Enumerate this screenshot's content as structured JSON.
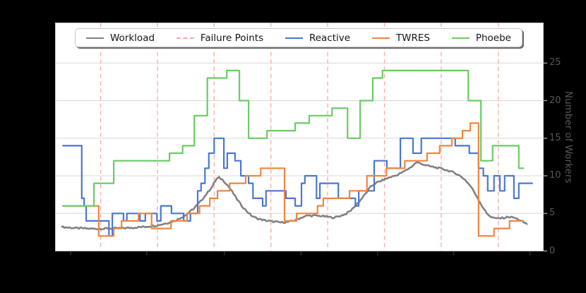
{
  "figure": {
    "y_axis_label": "Number of Workers",
    "y_ticks": [
      0,
      5,
      10,
      15,
      20,
      25
    ],
    "x_ticks_t": [
      3.2,
      18.9,
      34.9,
      50.7,
      66.5,
      82.2,
      97.9
    ],
    "colors": {
      "plot_background": "#ffffff",
      "outer_background": "#000000",
      "grid": "#d7d7d7",
      "spine": "#c9c9c9",
      "tick_text": "#575757",
      "x_tick_mark": "#3a3a3a",
      "y_tick_mark": "#b9b9b9"
    }
  },
  "legend": {
    "items": [
      {
        "label": "Workload",
        "color": "#828282",
        "style": "solid"
      },
      {
        "label": "Failure Points",
        "color": "#fcaaa6",
        "style": "dashed"
      },
      {
        "label": "Reactive",
        "color": "#4a77d4",
        "style": "solid"
      },
      {
        "label": "TWRES",
        "color": "#f0853f",
        "style": "solid"
      },
      {
        "label": "Phoebe",
        "color": "#69cc62",
        "style": "solid"
      }
    ]
  },
  "chart_data": {
    "type": "line",
    "title": "",
    "xlabel": "",
    "ylabel": "Number of Workers",
    "x_axis_note": "time axis, tick labels not visible in image; x normalized 0-100",
    "xlim": [
      0,
      100
    ],
    "ylim": [
      0,
      30.4
    ],
    "grid": "horizontal-only",
    "legend_position": "top-center-horizontal",
    "failure_points_t": [
      9.4,
      21.1,
      32.8,
      44.5,
      56.2,
      67.9,
      79.6,
      91.4
    ],
    "series": [
      {
        "name": "Workload",
        "color": "#828282",
        "line_style": "noisy-line",
        "end_t": 97.3,
        "points": [
          [
            1.3,
            3.2
          ],
          [
            4,
            3.05
          ],
          [
            8,
            2.95
          ],
          [
            12,
            3.0
          ],
          [
            16,
            3.1
          ],
          [
            19,
            3.25
          ],
          [
            21,
            3.4
          ],
          [
            23,
            3.7
          ],
          [
            25,
            4.1
          ],
          [
            27,
            4.8
          ],
          [
            28.5,
            5.6
          ],
          [
            30,
            6.6
          ],
          [
            31.5,
            7.8
          ],
          [
            32.5,
            8.7
          ],
          [
            33.3,
            9.6
          ],
          [
            33.8,
            9.75
          ],
          [
            34.5,
            9.5
          ],
          [
            35.5,
            8.8
          ],
          [
            36.5,
            7.9
          ],
          [
            37.5,
            6.9
          ],
          [
            38.5,
            6.0
          ],
          [
            39.5,
            5.3
          ],
          [
            40.5,
            4.7
          ],
          [
            41.5,
            4.35
          ],
          [
            43,
            4.1
          ],
          [
            45,
            3.9
          ],
          [
            46.5,
            3.8
          ],
          [
            48,
            3.85
          ],
          [
            49.5,
            4.1
          ],
          [
            51,
            4.5
          ],
          [
            52,
            4.7
          ],
          [
            53.5,
            4.7
          ],
          [
            55,
            4.65
          ],
          [
            56.5,
            4.5
          ],
          [
            57.5,
            4.45
          ],
          [
            58.5,
            4.6
          ],
          [
            60,
            4.95
          ],
          [
            61,
            5.4
          ],
          [
            62,
            6.1
          ],
          [
            63,
            6.8
          ],
          [
            64,
            7.6
          ],
          [
            65,
            8.5
          ],
          [
            66,
            9.0
          ],
          [
            67.5,
            9.4
          ],
          [
            69,
            9.8
          ],
          [
            70.5,
            10.1
          ],
          [
            72,
            10.6
          ],
          [
            73.5,
            11.2
          ],
          [
            74.5,
            11.8
          ],
          [
            75.5,
            11.6
          ],
          [
            77,
            11.3
          ],
          [
            78.5,
            11.1
          ],
          [
            80,
            10.9
          ],
          [
            81.5,
            10.6
          ],
          [
            83,
            10.2
          ],
          [
            84.5,
            9.5
          ],
          [
            85.8,
            8.5
          ],
          [
            87,
            7.2
          ],
          [
            88,
            6.0
          ],
          [
            89,
            5.0
          ],
          [
            90,
            4.5
          ],
          [
            91,
            4.3
          ],
          [
            92.5,
            4.4
          ],
          [
            93.5,
            4.55
          ],
          [
            94.5,
            4.45
          ],
          [
            95.5,
            4.2
          ],
          [
            96.3,
            3.9
          ],
          [
            97.3,
            3.6
          ]
        ]
      },
      {
        "name": "Reactive",
        "color": "#4a77d4",
        "line_style": "step",
        "end_t": 98.5,
        "points": [
          [
            1.5,
            14
          ],
          [
            5.5,
            7
          ],
          [
            6.0,
            6
          ],
          [
            6.4,
            4
          ],
          [
            11.1,
            2
          ],
          [
            11.8,
            5
          ],
          [
            14.1,
            4
          ],
          [
            14.8,
            5
          ],
          [
            17.5,
            4
          ],
          [
            18.6,
            5
          ],
          [
            21.0,
            4
          ],
          [
            21.8,
            6
          ],
          [
            24.0,
            5
          ],
          [
            26.5,
            4
          ],
          [
            27.9,
            5
          ],
          [
            29.4,
            8
          ],
          [
            30.1,
            9
          ],
          [
            30.9,
            11
          ],
          [
            31.7,
            13
          ],
          [
            32.8,
            15
          ],
          [
            34.8,
            11
          ],
          [
            35.5,
            13
          ],
          [
            37.1,
            12
          ],
          [
            38.3,
            10
          ],
          [
            39.9,
            9
          ],
          [
            40.8,
            7
          ],
          [
            42.8,
            6
          ],
          [
            43.5,
            8
          ],
          [
            47.6,
            7
          ],
          [
            49.5,
            6
          ],
          [
            50.8,
            9
          ],
          [
            51.5,
            10
          ],
          [
            53.9,
            7
          ],
          [
            54.6,
            9
          ],
          [
            58.4,
            7
          ],
          [
            61.9,
            6
          ],
          [
            62.6,
            8
          ],
          [
            65.8,
            12
          ],
          [
            68.4,
            11
          ],
          [
            71.2,
            15
          ],
          [
            73.8,
            13
          ],
          [
            75.5,
            15
          ],
          [
            82.5,
            14
          ],
          [
            85.4,
            13
          ],
          [
            87.3,
            11
          ],
          [
            88.3,
            10
          ],
          [
            89.2,
            8
          ],
          [
            90.5,
            10
          ],
          [
            91.7,
            8
          ],
          [
            92.7,
            10
          ],
          [
            94.6,
            7
          ],
          [
            95.6,
            9
          ]
        ]
      },
      {
        "name": "TWRES",
        "color": "#f0853f",
        "line_style": "step",
        "end_t": 96.7,
        "points": [
          [
            1.5,
            6
          ],
          [
            9.0,
            2
          ],
          [
            12.1,
            3
          ],
          [
            13.7,
            4
          ],
          [
            17.2,
            5
          ],
          [
            19.9,
            3
          ],
          [
            23.9,
            4
          ],
          [
            27.2,
            5
          ],
          [
            29.8,
            6
          ],
          [
            31.9,
            7
          ],
          [
            33.5,
            8
          ],
          [
            36.0,
            9
          ],
          [
            39.3,
            10
          ],
          [
            42.4,
            11
          ],
          [
            47.3,
            4
          ],
          [
            49.8,
            5
          ],
          [
            54.1,
            6
          ],
          [
            55.3,
            7
          ],
          [
            60.7,
            8
          ],
          [
            64.3,
            10
          ],
          [
            68.3,
            11
          ],
          [
            72.1,
            12
          ],
          [
            76.7,
            13
          ],
          [
            79.3,
            14
          ],
          [
            81.8,
            15
          ],
          [
            84.0,
            16
          ],
          [
            85.6,
            17
          ],
          [
            87.3,
            2
          ],
          [
            90.5,
            3
          ],
          [
            93.7,
            4
          ]
        ]
      },
      {
        "name": "Phoebe",
        "color": "#69cc62",
        "line_style": "step",
        "end_t": 96.7,
        "points": [
          [
            1.5,
            6
          ],
          [
            8.0,
            9
          ],
          [
            12.1,
            12
          ],
          [
            23.6,
            13
          ],
          [
            26.3,
            14
          ],
          [
            28.7,
            18
          ],
          [
            31.4,
            23
          ],
          [
            35.4,
            24
          ],
          [
            38.0,
            20
          ],
          [
            39.9,
            15
          ],
          [
            43.7,
            16
          ],
          [
            49.5,
            17
          ],
          [
            52.4,
            18
          ],
          [
            57.1,
            19
          ],
          [
            60.3,
            15
          ],
          [
            62.9,
            20
          ],
          [
            65.5,
            23
          ],
          [
            67.5,
            24
          ],
          [
            85.2,
            20
          ],
          [
            87.8,
            12
          ],
          [
            90.2,
            14
          ],
          [
            95.6,
            11
          ]
        ]
      }
    ]
  }
}
